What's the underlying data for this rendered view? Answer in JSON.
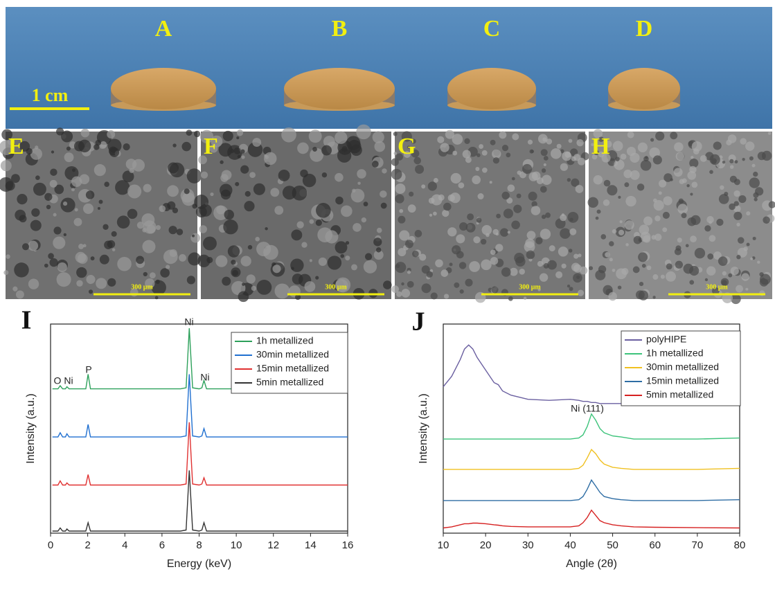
{
  "photo": {
    "labels": [
      "A",
      "B",
      "C",
      "D"
    ],
    "scale_bar": "1 cm"
  },
  "sem": {
    "panels": [
      {
        "label": "E",
        "scale_bar": "300 μm"
      },
      {
        "label": "F",
        "scale_bar": "300 μm"
      },
      {
        "label": "G",
        "scale_bar": "300 μm"
      },
      {
        "label": "H",
        "scale_bar": "300 μm"
      }
    ]
  },
  "chart_data": [
    {
      "type": "line",
      "panel_label": "I",
      "x_label": "Energy (keV)",
      "y_label": "Intensity (a.u.)",
      "x": [
        0.1,
        0.4,
        0.52,
        0.65,
        0.8,
        0.88,
        1.0,
        1.5,
        1.9,
        2.02,
        2.15,
        2.5,
        3,
        4,
        5,
        6,
        7,
        7.3,
        7.47,
        7.65,
        8,
        8.15,
        8.26,
        8.4,
        9,
        10,
        12,
        14,
        16
      ],
      "xlim": [
        0,
        16
      ],
      "xticks": [
        0,
        2,
        4,
        6,
        8,
        10,
        12,
        14,
        16
      ],
      "ylim": [
        0,
        100
      ],
      "legend": "upper right",
      "annotations": [
        "O",
        "Ni",
        "P",
        "Ni",
        "Ni"
      ],
      "series": [
        {
          "name": "1h metallized",
          "color": "#2ca05a",
          "values": [
            69,
            69,
            70.5,
            69,
            69,
            70,
            69,
            69,
            69,
            76,
            69,
            69,
            69,
            69,
            69,
            69,
            69,
            69.5,
            98,
            69.5,
            69,
            69.5,
            73,
            69,
            69,
            69,
            69,
            69,
            69
          ]
        },
        {
          "name": "30min metallized",
          "color": "#1f6fd0",
          "values": [
            46,
            46,
            48,
            46,
            46,
            47.5,
            46,
            46,
            46,
            52,
            46,
            46,
            46,
            46,
            46,
            46,
            46,
            46.5,
            76,
            46.5,
            46,
            46.5,
            50,
            46,
            46,
            46,
            46,
            46,
            46
          ]
        },
        {
          "name": "15min metallized",
          "color": "#e03030",
          "values": [
            23,
            23,
            25,
            23,
            23,
            24,
            23,
            23,
            23,
            28,
            23,
            23,
            23,
            23,
            23,
            23,
            23,
            23.5,
            53,
            23.5,
            23,
            23.5,
            26.5,
            23,
            23,
            23,
            23,
            23,
            23
          ]
        },
        {
          "name": "5min metallized",
          "color": "#333333",
          "values": [
            1,
            1,
            2.5,
            1,
            1,
            2,
            1,
            1,
            1,
            5,
            1,
            1,
            1,
            1,
            1,
            1,
            1,
            1.5,
            30,
            1.5,
            1,
            1.5,
            5,
            1,
            1,
            1,
            1,
            1,
            1
          ]
        }
      ]
    },
    {
      "type": "line",
      "panel_label": "J",
      "x_label": "Angle (2θ)",
      "y_label": "Intensity (a.u.)",
      "x": [
        10,
        12,
        14,
        15,
        16,
        17,
        18,
        20,
        22,
        23,
        24,
        26,
        30,
        35,
        40,
        42,
        43,
        44,
        45,
        46,
        47,
        48,
        50,
        52,
        55,
        60,
        70,
        80
      ],
      "xlim": [
        10,
        80
      ],
      "xticks": [
        10,
        20,
        30,
        40,
        50,
        60,
        70,
        80
      ],
      "ylim": [
        0,
        100
      ],
      "legend": "upper right",
      "annotations": [
        "Ni (111)"
      ],
      "series": [
        {
          "name": "polyHIPE",
          "color": "#6a5fa0",
          "values": [
            70,
            75,
            83,
            88,
            90,
            88,
            84,
            78,
            72,
            71,
            68,
            66,
            64,
            63.5,
            64,
            63.5,
            63,
            63,
            62.5,
            62.5,
            62,
            62,
            62,
            62,
            61.5,
            61.5,
            61,
            61
          ]
        },
        {
          "name": "1h metallized",
          "color": "#3cc37a",
          "values": [
            45,
            45,
            45,
            45,
            45,
            45,
            45,
            45,
            45,
            45,
            45,
            45,
            45,
            45,
            45,
            45.5,
            47,
            51,
            57,
            54,
            50,
            48,
            46.5,
            46,
            45,
            45,
            45,
            45.5
          ]
        },
        {
          "name": "30min metallized",
          "color": "#f0c020",
          "values": [
            30.5,
            30.5,
            30.5,
            30.5,
            30.5,
            30.5,
            30.5,
            30.5,
            30.5,
            30.5,
            30.5,
            30.5,
            30.5,
            30.5,
            30.5,
            31,
            32.5,
            36,
            40,
            38,
            35,
            33,
            31.5,
            31,
            30.5,
            30.5,
            30.5,
            31
          ]
        },
        {
          "name": "15min metallized",
          "color": "#2e6da4",
          "values": [
            15.6,
            15.6,
            15.6,
            15.6,
            15.6,
            15.6,
            15.6,
            15.6,
            15.6,
            15.6,
            15.6,
            15.6,
            15.6,
            15.6,
            15.6,
            16,
            17.5,
            21,
            25.4,
            22.5,
            19.5,
            17.5,
            16.5,
            16,
            15.6,
            15.6,
            15.6,
            16
          ]
        },
        {
          "name": "5min metallized",
          "color": "#d62020",
          "values": [
            2.5,
            3,
            4,
            4.5,
            4.5,
            4.8,
            4.8,
            4.5,
            4,
            3.8,
            3.5,
            3.2,
            3,
            3,
            3,
            3.5,
            5,
            7.5,
            11,
            8.5,
            6,
            5,
            4,
            3.5,
            3,
            2.8,
            2.6,
            2.5
          ]
        }
      ]
    }
  ]
}
